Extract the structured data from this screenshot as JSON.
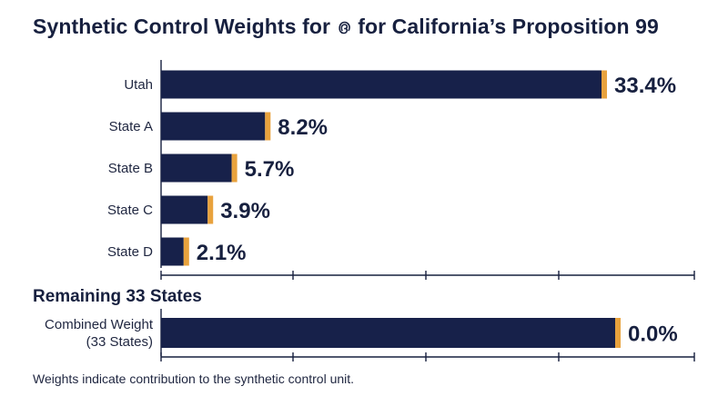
{
  "title_prefix": "Synthetic Control Weights for",
  "title_glyph": "൫",
  "title_suffix": "for California’s Proposition 99",
  "colors": {
    "bar": "#17214a",
    "accent": "#e8a23d",
    "text": "#17203f"
  },
  "chart_data": [
    {
      "type": "bar",
      "orientation": "horizontal",
      "title": "Synthetic Control Weights for ൫ for California’s Proposition 99",
      "categories": [
        "Utah",
        "State A",
        "State B",
        "State C",
        "State D"
      ],
      "values": [
        33.4,
        8.2,
        5.7,
        3.9,
        2.1
      ],
      "value_labels": [
        "33.4%",
        "8.2%",
        "5.7%",
        "3.9%",
        "2.1%"
      ],
      "xlim": [
        0,
        40
      ],
      "grid": false
    },
    {
      "type": "bar",
      "orientation": "horizontal",
      "title": "Remaining 33 States",
      "categories": [
        "Combined Weight (33 States)"
      ],
      "category_lines": [
        [
          "Combined Weight",
          "(33 States)"
        ]
      ],
      "values": [
        0.0
      ],
      "value_labels": [
        "0.0%"
      ],
      "grid": false
    }
  ],
  "footnote": "Weights indicate contribution to the synthetic control unit."
}
